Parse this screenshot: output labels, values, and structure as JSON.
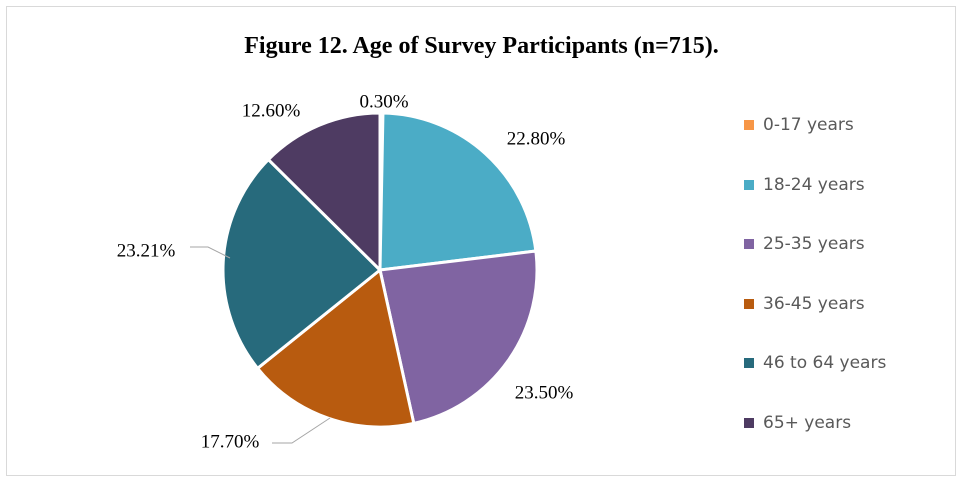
{
  "chart_data": {
    "type": "pie",
    "title": "Figure 12. Age of Survey Participants (n=715).",
    "categories": [
      "0-17 years",
      "18-24 years",
      "25-35 years",
      "36-45 years",
      "46 to 64 years",
      "65+ years"
    ],
    "values": [
      0.3,
      22.8,
      23.5,
      17.7,
      23.21,
      12.6
    ],
    "value_labels": [
      "0.30%",
      "22.80%",
      "23.50%",
      "17.70%",
      "23.21%",
      "12.60%"
    ],
    "colors": [
      "#F79646",
      "#4BACC6",
      "#8064A2",
      "#B85B0F",
      "#276A7C",
      "#4E3B62"
    ],
    "start_angle_deg": 0,
    "direction": "clockwise",
    "legend_position": "right"
  }
}
